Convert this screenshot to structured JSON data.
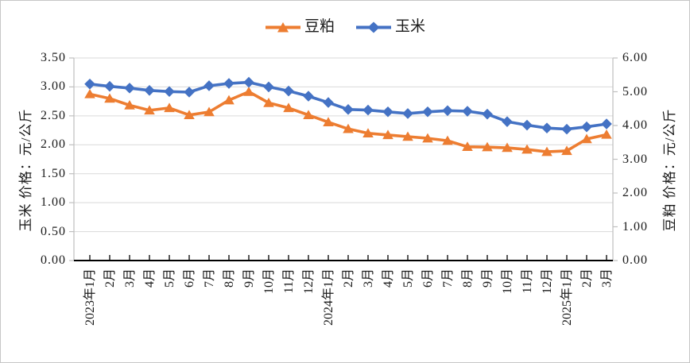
{
  "chart_data": {
    "type": "line",
    "categories": [
      "2023年1月",
      "2月",
      "3月",
      "4月",
      "5月",
      "6月",
      "7月",
      "8月",
      "9月",
      "10月",
      "11月",
      "12月",
      "2024年1月",
      "2月",
      "3月",
      "4月",
      "5月",
      "6月",
      "7月",
      "8月",
      "9月",
      "10月",
      "11月",
      "12月",
      "2025年1月",
      "2月",
      "3月"
    ],
    "series": [
      {
        "name": "豆粕",
        "axis": "right",
        "color": "#ED7D31",
        "marker": "triangle",
        "values": [
          4.93,
          4.8,
          4.6,
          4.45,
          4.52,
          4.31,
          4.4,
          4.75,
          5.0,
          4.67,
          4.52,
          4.31,
          4.1,
          3.9,
          3.77,
          3.72,
          3.67,
          3.62,
          3.55,
          3.37,
          3.36,
          3.34,
          3.29,
          3.22,
          3.25,
          3.6,
          3.73
        ]
      },
      {
        "name": "玉米",
        "axis": "left",
        "color": "#4472C4",
        "marker": "diamond",
        "values": [
          3.05,
          3.01,
          2.98,
          2.94,
          2.92,
          2.91,
          3.02,
          3.06,
          3.08,
          3.0,
          2.93,
          2.84,
          2.73,
          2.61,
          2.6,
          2.57,
          2.54,
          2.57,
          2.59,
          2.58,
          2.53,
          2.4,
          2.34,
          2.29,
          2.27,
          2.31,
          2.36
        ]
      }
    ],
    "left_axis": {
      "title": "玉米 价格：元/公斤",
      "ylim": [
        0,
        3.5
      ],
      "tick_step": 0.5,
      "tick_labels": [
        "0.00",
        "0.50",
        "1.00",
        "1.50",
        "2.00",
        "2.50",
        "3.00",
        "3.50"
      ]
    },
    "right_axis": {
      "title": "豆粕 价格：元/公斤",
      "ylim": [
        0,
        6
      ],
      "tick_step": 1,
      "tick_labels": [
        "0.00",
        "1.00",
        "2.00",
        "3.00",
        "4.00",
        "5.00",
        "6.00"
      ]
    },
    "grid": true,
    "legend_position": "top-center"
  }
}
